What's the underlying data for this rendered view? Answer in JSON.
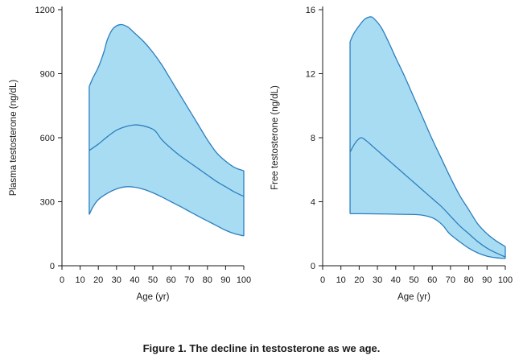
{
  "caption": "Figure 1. The decline in testosterone as we age.",
  "colors": {
    "band_fill": "#a8dcf2",
    "line": "#2c7fbf",
    "axis": "#1a1a1a"
  },
  "chart_data": [
    {
      "type": "area",
      "title": "",
      "xlabel": "Age (yr)",
      "ylabel": "Plasma testosterone (ng/dL)",
      "xlim": [
        0,
        100
      ],
      "ylim": [
        0,
        1200
      ],
      "xticks": [
        0,
        10,
        20,
        30,
        40,
        50,
        60,
        70,
        80,
        90,
        100
      ],
      "yticks": [
        0,
        300,
        600,
        900,
        1200
      ],
      "grid": false,
      "legend": "none",
      "series": [
        {
          "role": "upper",
          "x": [
            15,
            17,
            20,
            23,
            25,
            28,
            32,
            36,
            40,
            45,
            50,
            55,
            60,
            65,
            70,
            75,
            80,
            85,
            90,
            95,
            100
          ],
          "y": [
            840,
            880,
            930,
            1000,
            1060,
            1110,
            1130,
            1120,
            1090,
            1050,
            1000,
            940,
            870,
            800,
            730,
            660,
            590,
            530,
            490,
            460,
            445
          ]
        },
        {
          "role": "median",
          "x": [
            15,
            20,
            25,
            30,
            35,
            40,
            45,
            50,
            52,
            55,
            60,
            65,
            70,
            75,
            80,
            85,
            90,
            95,
            100
          ],
          "y": [
            540,
            570,
            605,
            635,
            652,
            660,
            655,
            640,
            625,
            590,
            550,
            515,
            485,
            455,
            425,
            395,
            370,
            345,
            325
          ]
        },
        {
          "role": "lower",
          "x": [
            15,
            17,
            20,
            25,
            30,
            35,
            40,
            45,
            50,
            55,
            60,
            65,
            70,
            75,
            80,
            85,
            90,
            95,
            100
          ],
          "y": [
            240,
            275,
            310,
            340,
            360,
            370,
            368,
            358,
            342,
            322,
            300,
            278,
            255,
            232,
            210,
            188,
            166,
            150,
            140
          ]
        }
      ]
    },
    {
      "type": "area",
      "title": "",
      "xlabel": "Age (yr)",
      "ylabel": "Free testosterone (ng/dL)",
      "xlim": [
        0,
        100
      ],
      "ylim": [
        0,
        16
      ],
      "xticks": [
        0,
        10,
        20,
        30,
        40,
        50,
        60,
        70,
        80,
        90,
        100
      ],
      "yticks": [
        0,
        4,
        8,
        12,
        16
      ],
      "grid": false,
      "legend": "none",
      "series": [
        {
          "role": "upper",
          "x": [
            15,
            17,
            20,
            23,
            26,
            28,
            32,
            36,
            40,
            45,
            50,
            55,
            60,
            65,
            70,
            75,
            80,
            85,
            90,
            95,
            100
          ],
          "y": [
            14.0,
            14.5,
            15.0,
            15.4,
            15.55,
            15.45,
            14.9,
            14.0,
            13.0,
            11.8,
            10.5,
            9.2,
            7.9,
            6.7,
            5.5,
            4.4,
            3.5,
            2.6,
            2.0,
            1.55,
            1.2
          ]
        },
        {
          "role": "median",
          "x": [
            15,
            18,
            21,
            24,
            28,
            32,
            36,
            40,
            45,
            50,
            55,
            60,
            65,
            70,
            75,
            80,
            85,
            90,
            95,
            100
          ],
          "y": [
            7.1,
            7.7,
            8.0,
            7.8,
            7.4,
            7.0,
            6.6,
            6.2,
            5.7,
            5.2,
            4.7,
            4.2,
            3.7,
            3.1,
            2.5,
            2.0,
            1.5,
            1.1,
            0.8,
            0.55
          ]
        },
        {
          "role": "lower",
          "x": [
            15,
            20,
            30,
            40,
            50,
            55,
            60,
            63,
            66,
            68,
            70,
            75,
            80,
            85,
            90,
            95,
            100
          ],
          "y": [
            3.25,
            3.25,
            3.24,
            3.22,
            3.2,
            3.15,
            3.0,
            2.8,
            2.5,
            2.2,
            1.95,
            1.5,
            1.1,
            0.8,
            0.6,
            0.5,
            0.45
          ]
        }
      ]
    }
  ]
}
